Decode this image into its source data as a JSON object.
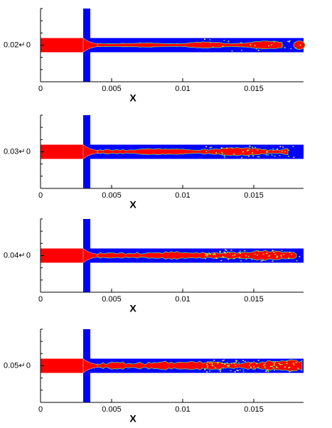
{
  "chart_data": [
    {
      "type": "contour",
      "time_label": "0.02↵",
      "xlabel": "X",
      "xlim": [
        0,
        0.0185
      ],
      "xticks": [
        0,
        0.005,
        0.01,
        0.015
      ],
      "ylim": [
        -0.0025,
        0.0025
      ],
      "yticks": [
        0
      ],
      "colors": {
        "liquid": "#ff0000",
        "gas": "#0000ff",
        "interface": "#66dd66"
      }
    },
    {
      "type": "contour",
      "time_label": "0.03↵",
      "xlabel": "X",
      "xlim": [
        0,
        0.0185
      ],
      "xticks": [
        0,
        0.005,
        0.01,
        0.015
      ],
      "ylim": [
        -0.0025,
        0.0025
      ],
      "yticks": [
        0
      ],
      "colors": {
        "liquid": "#ff0000",
        "gas": "#0000ff",
        "interface": "#66dd66"
      }
    },
    {
      "type": "contour",
      "time_label": "0.04↵",
      "xlabel": "X",
      "xlim": [
        0,
        0.0185
      ],
      "xticks": [
        0,
        0.005,
        0.01,
        0.015
      ],
      "ylim": [
        -0.0025,
        0.0025
      ],
      "yticks": [
        0
      ],
      "colors": {
        "liquid": "#ff0000",
        "gas": "#0000ff",
        "interface": "#66dd66"
      }
    },
    {
      "type": "contour",
      "time_label": "0.05↵",
      "xlabel": "X",
      "xlim": [
        0,
        0.0185
      ],
      "xticks": [
        0,
        0.005,
        0.01,
        0.015
      ],
      "ylim": [
        -0.0025,
        0.0025
      ],
      "yticks": [
        0
      ],
      "colors": {
        "liquid": "#ff0000",
        "gas": "#0000ff",
        "interface": "#66dd66"
      }
    }
  ]
}
